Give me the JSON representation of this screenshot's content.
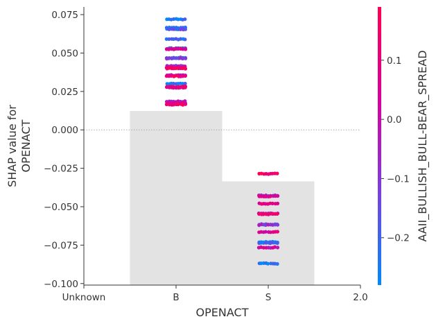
{
  "chart_data": {
    "type": "scatter",
    "subtype": "shap-dependence-plot",
    "xlabel": "OPENACT",
    "ylabel_lines": [
      "SHAP value for",
      "OPENACT"
    ],
    "colorbar_label": "AAII_BULLISH_BULL-BEAR_SPREAD",
    "x_ticks": [
      "Unknown",
      "B",
      "S",
      "2.0"
    ],
    "y_ticks": [
      "0.075",
      "0.050",
      "0.025",
      "0.000",
      "−0.025",
      "−0.050",
      "−0.075",
      "−0.100"
    ],
    "y_tick_values": [
      0.075,
      0.05,
      0.025,
      0.0,
      -0.025,
      -0.05,
      -0.075,
      -0.1
    ],
    "ylim": [
      -0.101,
      0.08
    ],
    "xlim": [
      0,
      3
    ],
    "colorbar_ticks": [
      "0.1",
      "0.0",
      "−0.1",
      "−0.2"
    ],
    "colorbar_tick_values": [
      0.1,
      0.0,
      -0.1,
      -0.2
    ],
    "colorbar_range": [
      -0.28,
      0.19
    ],
    "colormap": [
      "#008afb",
      "#7a3fe0",
      "#d8009a",
      "#ff0052"
    ],
    "zero_line": true,
    "background_hist": [
      {
        "category": "B",
        "x_start": 0.5,
        "x_end": 1.5,
        "top": 0.0123
      },
      {
        "category": "S",
        "x_start": 1.5,
        "x_end": 2.5,
        "top": -0.0335
      }
    ],
    "hist_color": "#e3e3e3",
    "clusters": [
      {
        "category": "B",
        "x": 1,
        "shap": 0.072,
        "color": -0.25
      },
      {
        "category": "B",
        "x": 1,
        "shap": 0.0665,
        "color": -0.2
      },
      {
        "category": "B",
        "x": 1,
        "shap": 0.0655,
        "color": -0.18
      },
      {
        "category": "B",
        "x": 1,
        "shap": 0.059,
        "color": -0.22
      },
      {
        "category": "B",
        "x": 1,
        "shap": 0.053,
        "color": -0.15
      },
      {
        "category": "B",
        "x": 1,
        "shap": 0.0525,
        "color": 0.05
      },
      {
        "category": "B",
        "x": 1,
        "shap": 0.047,
        "color": -0.2
      },
      {
        "category": "B",
        "x": 1,
        "shap": 0.0465,
        "color": -0.1
      },
      {
        "category": "B",
        "x": 1,
        "shap": 0.0415,
        "color": -0.05
      },
      {
        "category": "B",
        "x": 1,
        "shap": 0.0405,
        "color": 0.1
      },
      {
        "category": "B",
        "x": 1,
        "shap": 0.04,
        "color": 0.15
      },
      {
        "category": "B",
        "x": 1,
        "shap": 0.0355,
        "color": 0.0
      },
      {
        "category": "B",
        "x": 1,
        "shap": 0.035,
        "color": 0.12
      },
      {
        "category": "B",
        "x": 1,
        "shap": 0.03,
        "color": -0.22
      },
      {
        "category": "B",
        "x": 1,
        "shap": 0.028,
        "color": 0.16
      },
      {
        "category": "B",
        "x": 1,
        "shap": 0.0275,
        "color": 0.08
      },
      {
        "category": "B",
        "x": 1,
        "shap": 0.0185,
        "color": -0.05
      },
      {
        "category": "B",
        "x": 1,
        "shap": 0.0175,
        "color": 0.05
      },
      {
        "category": "B",
        "x": 1,
        "shap": 0.0165,
        "color": 0.12
      },
      {
        "category": "S",
        "x": 2,
        "shap": -0.0285,
        "color": 0.15
      },
      {
        "category": "S",
        "x": 2,
        "shap": -0.0428,
        "color": -0.05
      },
      {
        "category": "S",
        "x": 2,
        "shap": -0.0432,
        "color": 0.05
      },
      {
        "category": "S",
        "x": 2,
        "shap": -0.048,
        "color": 0.08
      },
      {
        "category": "S",
        "x": 2,
        "shap": -0.0545,
        "color": 0.0
      },
      {
        "category": "S",
        "x": 2,
        "shap": -0.0548,
        "color": 0.12
      },
      {
        "category": "S",
        "x": 2,
        "shap": -0.0615,
        "color": -0.15
      },
      {
        "category": "S",
        "x": 2,
        "shap": -0.0618,
        "color": -0.08
      },
      {
        "category": "S",
        "x": 2,
        "shap": -0.0665,
        "color": 0.05
      },
      {
        "category": "S",
        "x": 2,
        "shap": -0.073,
        "color": -0.25
      },
      {
        "category": "S",
        "x": 2,
        "shap": -0.0735,
        "color": -0.2
      },
      {
        "category": "S",
        "x": 2,
        "shap": -0.0765,
        "color": 0.02
      },
      {
        "category": "S",
        "x": 2,
        "shap": -0.087,
        "color": -0.25
      }
    ]
  }
}
